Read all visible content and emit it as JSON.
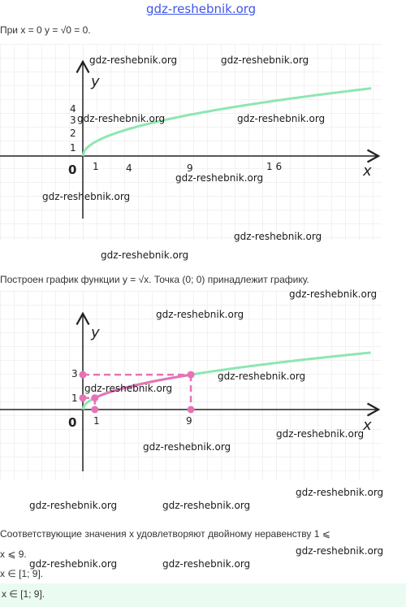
{
  "watermark": "gdz-reshebnik.org",
  "text": {
    "line1": "При x = 0 y = √0 = 0.",
    "line2": "Построен график функции y = √x. Точка (0; 0) принадлежит графику.",
    "line3": "Соответствующие значения x удовлетворяют двойному неравенству 1 ⩽",
    "line4": "x ⩽ 9.",
    "line5": "x ∈ [1; 9].",
    "answer": "x ∈ [1; 9]."
  },
  "graph1": {
    "x_label": "x",
    "y_label": "y",
    "origin": "0",
    "x_ticks": [
      "1",
      "4",
      "9",
      "1 6"
    ],
    "y_ticks": [
      "1",
      "2",
      "3",
      "4"
    ]
  },
  "graph2": {
    "x_label": "x",
    "y_label": "y",
    "origin": "0",
    "x_ticks": [
      "1",
      "9"
    ],
    "y_ticks": [
      "1",
      "3"
    ]
  },
  "chart_data": [
    {
      "type": "line",
      "function": "y = sqrt(x)",
      "x": [
        0,
        1,
        4,
        9,
        16
      ],
      "y": [
        0,
        1,
        2,
        3,
        4
      ],
      "grid": true,
      "colors": {
        "curve": "#8ee6b2",
        "axes": "#222222",
        "grid": "#e6e6e6"
      }
    },
    {
      "type": "line",
      "function": "y = sqrt(x)",
      "x": [
        0,
        1,
        4,
        9,
        16
      ],
      "y": [
        0,
        1,
        2,
        3,
        4
      ],
      "highlight_segment": {
        "x": [
          1,
          9
        ],
        "y": [
          1,
          3
        ]
      },
      "grid": true,
      "colors": {
        "curve": "#8ee6b2",
        "highlight": "#e673b8",
        "axes": "#222222",
        "grid": "#e6e6e6"
      }
    }
  ]
}
